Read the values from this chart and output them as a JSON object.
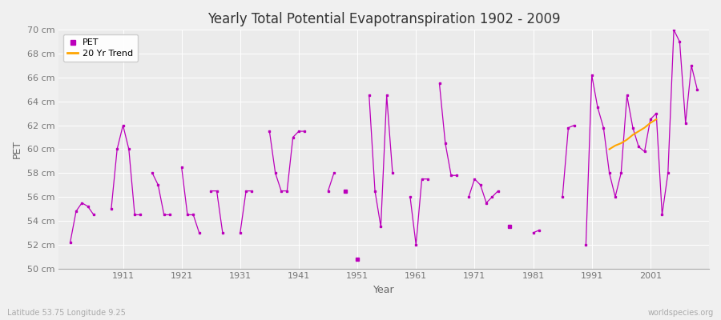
{
  "title": "Yearly Total Potential Evapotranspiration 1902 - 2009",
  "xlabel": "Year",
  "ylabel": "PET",
  "bottom_left_label": "Latitude 53.75 Longitude 9.25",
  "bottom_right_label": "worldspecies.org",
  "pet_color": "#bb00bb",
  "trend_color": "#FFA500",
  "background_color": "#f0f0f0",
  "plot_bg_color": "#ebebeb",
  "ylim": [
    50,
    70
  ],
  "ytick_values": [
    50,
    52,
    54,
    56,
    58,
    60,
    62,
    64,
    66,
    68,
    70
  ],
  "ytick_labels": [
    "50 cm",
    "52 cm",
    "54 cm",
    "56 cm",
    "58 cm",
    "60 cm",
    "62 cm",
    "64 cm",
    "66 cm",
    "68 cm",
    "70 cm"
  ],
  "xlim": [
    1900,
    2011
  ],
  "xtick_values": [
    1911,
    1921,
    1931,
    1941,
    1951,
    1961,
    1971,
    1981,
    1991,
    2001
  ],
  "years": [
    1902,
    1903,
    1904,
    1905,
    1906,
    1909,
    1910,
    1911,
    1912,
    1913,
    1914,
    1916,
    1917,
    1918,
    1919,
    1921,
    1922,
    1923,
    1924,
    1926,
    1927,
    1928,
    1931,
    1932,
    1933,
    1936,
    1937,
    1938,
    1939,
    1940,
    1941,
    1942,
    1946,
    1947,
    1949,
    1951,
    1953,
    1954,
    1955,
    1956,
    1957,
    1960,
    1961,
    1962,
    1963,
    1965,
    1966,
    1967,
    1968,
    1970,
    1971,
    1972,
    1973,
    1974,
    1975,
    1977,
    1981,
    1982,
    1986,
    1987,
    1988,
    1990,
    1991,
    1992,
    1993,
    1994,
    1995,
    1996,
    1997,
    1998,
    1999,
    2000,
    2001,
    2002,
    2003,
    2004,
    2005,
    2006,
    2007,
    2008,
    2009
  ],
  "pet_values": [
    52.2,
    54.8,
    55.5,
    55.2,
    54.5,
    55.0,
    60.0,
    62.0,
    60.0,
    54.5,
    54.5,
    58.0,
    57.0,
    54.5,
    54.5,
    58.5,
    54.5,
    54.5,
    53.0,
    56.5,
    56.5,
    53.0,
    53.0,
    56.5,
    56.5,
    61.5,
    58.0,
    56.5,
    56.5,
    61.0,
    61.5,
    61.5,
    56.5,
    58.0,
    56.5,
    50.8,
    64.5,
    56.5,
    53.5,
    64.5,
    58.0,
    56.0,
    52.0,
    57.5,
    57.5,
    65.5,
    60.5,
    57.8,
    57.8,
    56.0,
    57.5,
    57.0,
    55.5,
    56.0,
    56.5,
    53.5,
    53.0,
    53.2,
    56.0,
    61.8,
    62.0,
    52.0,
    66.2,
    63.5,
    61.8,
    58.0,
    56.0,
    58.0,
    64.5,
    61.8,
    60.2,
    59.8,
    62.5,
    63.0,
    54.5,
    58.0,
    70.0,
    69.0,
    62.2,
    67.0,
    65.0
  ],
  "trend_years": [
    1994,
    1995,
    1996,
    1997,
    1998,
    1999,
    2000,
    2001,
    2002
  ],
  "trend_values": [
    60.0,
    60.3,
    60.5,
    60.8,
    61.2,
    61.5,
    61.8,
    62.2,
    62.5
  ]
}
